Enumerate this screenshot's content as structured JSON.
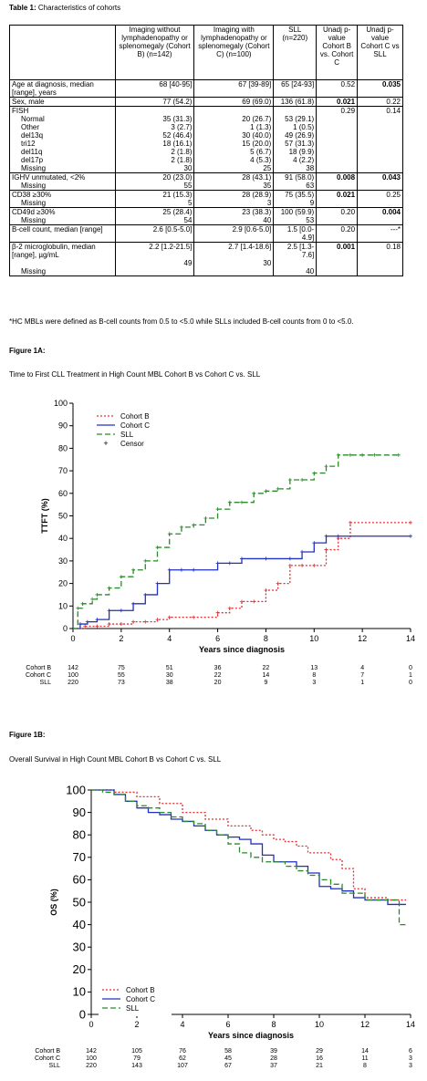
{
  "table": {
    "title_bold": "Table 1:",
    "title_rest": " Characteristics of cohorts",
    "headers": {
      "b": "Imaging without lymphadenopathy or splenomegaly (Cohort B) (n=142)",
      "c": "Imaging with lymphadenopathy or splenomegaly (Cohort C) (n=100)",
      "sll": "SLL (n=220)",
      "p1": "Unadj p-value Cohort B vs. Cohort C",
      "p2": "Unadj p-value Cohort C vs SLL"
    },
    "rows": {
      "age": {
        "label": "Age at diagnosis, median [range], years",
        "b": "68 [40-95]",
        "c": "67 [39-89]",
        "sll": "65 [24-93]",
        "p1": "0.52",
        "p2": "0.035"
      },
      "sex": {
        "label": "Sex, male",
        "b": "77 (54.2)",
        "c": "69 (69.0)",
        "sll": "136 (61.8)",
        "p1": "0.021",
        "p2": "0.22"
      },
      "fish": {
        "label": "FISH",
        "p1": "0.29",
        "p2": "0.14",
        "sub": [
          {
            "label": "Normal",
            "b": "35 (31.3)",
            "c": "20 (26.7)",
            "sll": "53 (29.1)"
          },
          {
            "label": "Other",
            "b": "3 (2.7)",
            "c": "1 (1.3)",
            "sll": "1 (0.5)"
          },
          {
            "label": "del13q",
            "b": "52 (46.4)",
            "c": "30 (40.0)",
            "sll": "49 (26.9)"
          },
          {
            "label": "tri12",
            "b": "18 (16.1)",
            "c": "15 (20.0)",
            "sll": "57 (31.3)"
          },
          {
            "label": "del11q",
            "b": "2 (1.8)",
            "c": "5 (6.7)",
            "sll": "18 (9.9)"
          },
          {
            "label": "del17p",
            "b": "2 (1.8)",
            "c": "4 (5.3)",
            "sll": "4 (2.2)"
          },
          {
            "label": "Missing",
            "b": "30",
            "c": "25",
            "sll": "38"
          }
        ]
      },
      "ighv": {
        "label": "IGHV unmutated, <2%",
        "b": "20 (23.0)",
        "c": "28 (43.1)",
        "sll": "91 (58.0)",
        "p1": "0.008",
        "p2": "0.043",
        "missing_label": "Missing",
        "mb": "55",
        "mc": "35",
        "msll": "63"
      },
      "cd38": {
        "label": "CD38 ≥30%",
        "b": "21 (15.3)",
        "c": "28 (28.9)",
        "sll": "75 (35.5)",
        "p1": "0.021",
        "p2": "0.25",
        "missing_label": "Missing",
        "mb": "5",
        "mc": "3",
        "msll": "9"
      },
      "cd49d": {
        "label": "CD49d ≥30%",
        "b": "25 (28.4)",
        "c": "23 (38.3)",
        "sll": "100 (59.9)",
        "p1": "0.20",
        "p2": "0.004",
        "missing_label": "Missing",
        "mb": "54",
        "mc": "40",
        "msll": "53"
      },
      "bcell": {
        "label": "B-cell count, median [range]",
        "b": "2.6 [0.5-5.0]",
        "c": "2.9 [0.6-5.0]",
        "sll": "1.5 [0.0-4.9]",
        "p1": "0.20",
        "p2": "---*"
      },
      "b2m": {
        "label": "β-2 microglobulin, median [range], µg/mL",
        "b": "2.2 [1.2-21.5]",
        "c": "2.7 [1.4-18.6]",
        "sll": "2.5 [1.3-7.6]",
        "p1": "0.001",
        "p2": "0.18",
        "missing_label": "Missing",
        "mb": "49",
        "mc": "30",
        "msll": "40"
      }
    },
    "footnote": "*HC MBLs were defined as B-cell counts from 0.5 to <5.0 while SLLs included B-cell counts from 0 to <5.0."
  },
  "fig1a": {
    "label": "Figure 1A:",
    "title": "Time to First CLL Treatment in High Count MBL Cohort B vs Cohort C vs. SLL",
    "legend": [
      "Cohort B",
      "Cohort C",
      "SLL",
      "Censor"
    ],
    "risk_labels": [
      "Cohort B",
      "Cohort C",
      "SLL"
    ],
    "risk": [
      [
        142,
        75,
        51,
        36,
        22,
        13,
        4,
        0
      ],
      [
        100,
        55,
        30,
        22,
        14,
        8,
        7,
        1
      ],
      [
        220,
        73,
        38,
        20,
        9,
        3,
        1,
        0
      ]
    ]
  },
  "fig1b": {
    "label": "Figure 1B:",
    "title": "Overall Survival in High Count MBL Cohort B vs Cohort C vs. SLL",
    "legend": [
      "Cohort B",
      "Cohort C",
      "SLL"
    ],
    "risk_labels": [
      "Cohort B",
      "Cohort C",
      "SLL"
    ],
    "risk": [
      [
        142,
        105,
        76,
        58,
        39,
        29,
        14,
        6
      ],
      [
        100,
        79,
        62,
        45,
        28,
        16,
        11,
        3
      ],
      [
        220,
        143,
        107,
        67,
        37,
        21,
        8,
        3
      ]
    ]
  },
  "chart_data": [
    {
      "type": "line",
      "title": "Time to First CLL Treatment in High Count MBL Cohort B vs Cohort C vs. SLL",
      "xlabel": "Years since diagnosis",
      "ylabel": "TTFT (%)",
      "xlim": [
        0,
        14
      ],
      "ylim": [
        0,
        100
      ],
      "xticks": [
        0,
        2,
        4,
        6,
        8,
        10,
        12,
        14
      ],
      "yticks": [
        0,
        10,
        20,
        30,
        40,
        50,
        60,
        70,
        80,
        90,
        100
      ],
      "series": [
        {
          "name": "Cohort B",
          "color": "#e03030",
          "dash": "dot",
          "x": [
            0,
            0.5,
            1,
            1.5,
            2,
            2.5,
            3,
            3.5,
            4,
            5,
            6,
            6.5,
            7,
            7.5,
            8,
            8.5,
            9,
            9.5,
            10,
            10.5,
            11,
            11.5,
            14
          ],
          "y": [
            0,
            1,
            1,
            2,
            2,
            3,
            3,
            4,
            5,
            5,
            7,
            9,
            12,
            12,
            17,
            20,
            28,
            28,
            28,
            35,
            40,
            47,
            47
          ]
        },
        {
          "name": "Cohort C",
          "color": "#2030c0",
          "dash": "solid",
          "x": [
            0,
            0.3,
            0.6,
            1,
            1.5,
            2,
            2.5,
            3,
            3.5,
            4,
            4.5,
            5,
            6,
            6.5,
            7,
            8,
            9,
            9.5,
            10,
            10.5,
            11,
            14
          ],
          "y": [
            0,
            2,
            3,
            4,
            8,
            8,
            11,
            15,
            20,
            26,
            26,
            26,
            29,
            29,
            31,
            31,
            31,
            34,
            38,
            41,
            41,
            41
          ]
        },
        {
          "name": "SLL",
          "color": "#2a8a2a",
          "dash": "dash",
          "x": [
            0,
            0.2,
            0.4,
            0.8,
            1,
            1.5,
            2,
            2.5,
            3,
            3.5,
            4,
            4.5,
            5,
            5.5,
            6,
            6.5,
            7,
            7.5,
            8,
            8.5,
            9,
            9.5,
            10,
            10.5,
            11,
            11.5,
            12,
            12.5,
            13.5
          ],
          "y": [
            0,
            9,
            11,
            13,
            15,
            18,
            23,
            26,
            30,
            36,
            42,
            45,
            46,
            49,
            53,
            56,
            56,
            60,
            61,
            62,
            66,
            66,
            69,
            72,
            77,
            77,
            77,
            77,
            77
          ]
        }
      ],
      "risk_x": [
        0,
        2,
        4,
        6,
        8,
        10,
        12,
        14
      ]
    },
    {
      "type": "line",
      "title": "Overall Survival in High Count MBL Cohort B vs Cohort C vs. SLL",
      "xlabel": "Years since diagnosis",
      "ylabel": "OS (%)",
      "xlim": [
        0,
        14
      ],
      "ylim": [
        0,
        100
      ],
      "xticks": [
        0,
        2,
        4,
        6,
        8,
        10,
        12,
        14
      ],
      "yticks": [
        0,
        10,
        20,
        30,
        40,
        50,
        60,
        70,
        80,
        90,
        100
      ],
      "series": [
        {
          "name": "Cohort B",
          "color": "#e03030",
          "dash": "dot",
          "x": [
            0,
            1,
            2,
            3,
            4,
            5,
            6,
            7,
            7.5,
            8,
            8.5,
            9,
            9.5,
            10,
            10.5,
            11,
            11.5,
            12,
            13,
            13.8
          ],
          "y": [
            100,
            99,
            97,
            94,
            90,
            87,
            84,
            82,
            80,
            78,
            77,
            75,
            72,
            72,
            69,
            65,
            56,
            52,
            51,
            51
          ]
        },
        {
          "name": "Cohort C",
          "color": "#2030c0",
          "dash": "solid",
          "x": [
            0,
            1,
            1.5,
            2,
            2.5,
            3,
            3.5,
            4,
            4.5,
            5,
            5.5,
            6,
            6.5,
            7,
            7.5,
            8,
            9,
            9.5,
            10,
            10.5,
            11,
            11.5,
            12,
            13,
            13.8
          ],
          "y": [
            100,
            98,
            95,
            92,
            90,
            89,
            87,
            86,
            84,
            82,
            80,
            79,
            78,
            76,
            71,
            68,
            66,
            63,
            57,
            56,
            55,
            52,
            51,
            49,
            49
          ]
        },
        {
          "name": "SLL",
          "color": "#2a8a2a",
          "dash": "dash",
          "x": [
            0,
            0.5,
            1,
            1.5,
            2,
            2.5,
            3,
            3.5,
            4,
            4.5,
            5,
            5.5,
            6,
            6.5,
            7,
            7.5,
            8,
            8.5,
            9,
            9.5,
            10,
            10.5,
            11,
            12,
            13,
            13.5,
            13.8
          ],
          "y": [
            100,
            99,
            98,
            95,
            93,
            92,
            90,
            88,
            86,
            85,
            82,
            80,
            76,
            72,
            70,
            68,
            68,
            66,
            64,
            62,
            60,
            58,
            54,
            51,
            51,
            40,
            40
          ]
        }
      ],
      "risk_x": [
        0,
        2,
        4,
        6,
        8,
        10,
        12,
        14
      ]
    }
  ]
}
